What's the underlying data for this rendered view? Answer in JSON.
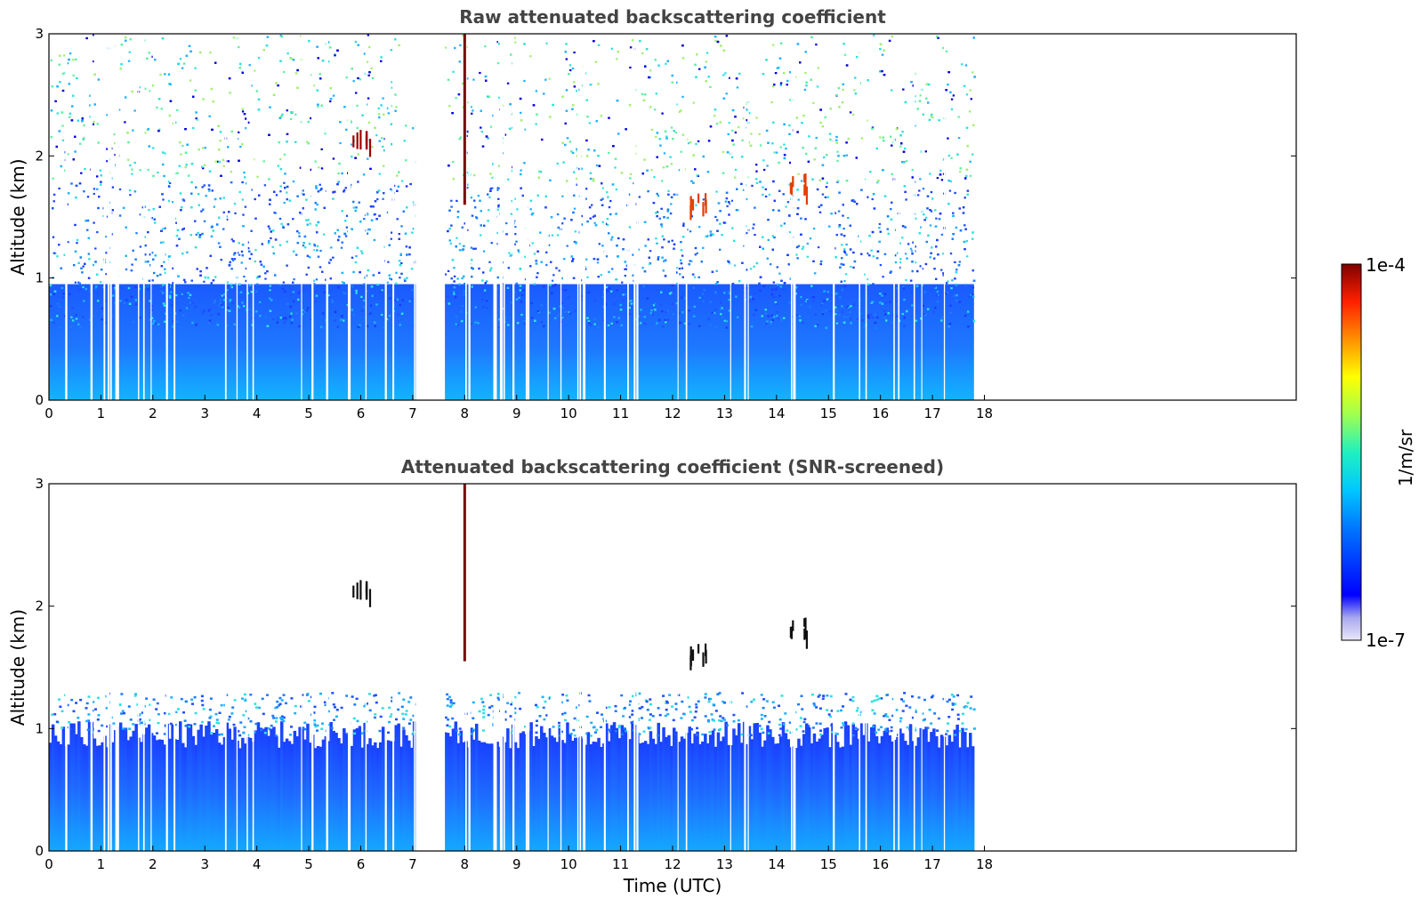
{
  "chart_data": [
    {
      "type": "heatmap",
      "title": "Raw attenuated backscattering coefficient",
      "xlabel": "",
      "ylabel": "Altitude (km)",
      "xlim": [
        0,
        24
      ],
      "ylim": [
        0,
        3
      ],
      "x_ticks": [
        "0",
        "1",
        "2",
        "3",
        "4",
        "5",
        "6",
        "7",
        "8",
        "9",
        "10",
        "11",
        "12",
        "13",
        "14",
        "15",
        "16",
        "17",
        "18"
      ],
      "y_ticks": [
        "0",
        "1",
        "2",
        "3"
      ],
      "data_time_range": [
        0,
        17.8
      ],
      "data_gap": [
        7.08,
        7.6
      ],
      "features": [
        {
          "x": 6.0,
          "y": 2.2,
          "level": "1e-4"
        },
        {
          "x": 8.0,
          "y": 2.4,
          "level": "1e-4"
        },
        {
          "x": 12.5,
          "y": 1.65,
          "level": "high"
        },
        {
          "x": 14.4,
          "y": 1.8,
          "level": "high"
        }
      ]
    },
    {
      "type": "heatmap",
      "title": "Attenuated backscattering coefficient (SNR-screened)",
      "xlabel": "Time (UTC)",
      "ylabel": "Altitude (km)",
      "xlim": [
        0,
        24
      ],
      "ylim": [
        0,
        3
      ],
      "x_ticks": [
        "0",
        "1",
        "2",
        "3",
        "4",
        "5",
        "6",
        "7",
        "8",
        "9",
        "10",
        "11",
        "12",
        "13",
        "14",
        "15",
        "16",
        "17",
        "18"
      ],
      "y_ticks": [
        "0",
        "1",
        "2",
        "3"
      ],
      "data_time_range": [
        0,
        17.8
      ],
      "data_gap": [
        7.08,
        7.6
      ],
      "boundary_layer_top_km": 0.95,
      "features": [
        {
          "x": 6.0,
          "y": 2.2,
          "level": "1e-4"
        },
        {
          "x": 8.0,
          "y": 2.3,
          "level": "1e-4"
        },
        {
          "x": 12.5,
          "y": 1.65,
          "level": "high"
        },
        {
          "x": 14.4,
          "y": 1.85,
          "level": "high"
        }
      ]
    }
  ],
  "colorbar": {
    "label": "1/m/sr",
    "max_label": "1e-4",
    "min_label": "1e-7",
    "colors": [
      "#e8e8f8",
      "#b8b8f0",
      "#8888ee",
      "#0000ff",
      "#0040ff",
      "#0080ff",
      "#00c0ff",
      "#00e0e0",
      "#40ff80",
      "#c0ff40",
      "#ffff00",
      "#ffc000",
      "#ff8000",
      "#ff2000",
      "#c00000",
      "#800000"
    ]
  }
}
